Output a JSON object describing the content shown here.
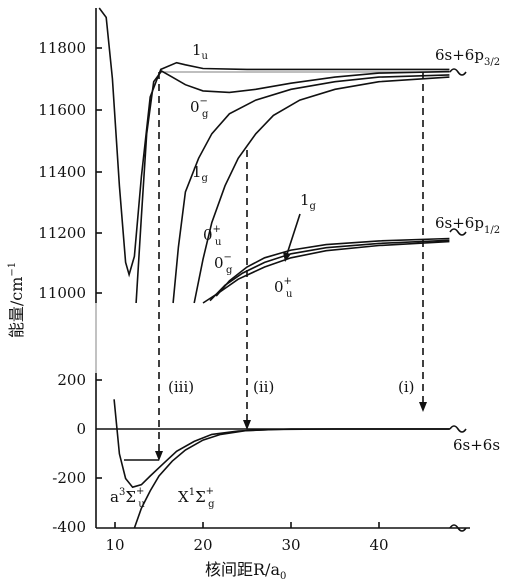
{
  "chart_data": {
    "type": "line",
    "ylabel": "能量/cm",
    "ylabel_sup": "−1",
    "xlabel": "核间距R/a",
    "xlabel_sub": "0",
    "panels": [
      {
        "id": "upper",
        "ylim": [
          10900,
          11960
        ],
        "yticks": [
          11000,
          11200,
          11400,
          11600,
          11800
        ],
        "asymptotes": [
          {
            "label": "6s+6p",
            "sub": "3/2",
            "y": 11730
          },
          {
            "label": "6s+6p",
            "sub": "1/2",
            "y": 11180
          }
        ],
        "curves": [
          {
            "label": "1",
            "sub": "u",
            "asymptote": 11730,
            "points": [
              [
                8.2,
                11970
              ],
              [
                9.0,
                11900
              ],
              [
                9.7,
                11700
              ],
              [
                10.5,
                11350
              ],
              [
                11.2,
                11100
              ],
              [
                11.6,
                11060
              ],
              [
                12.2,
                11120
              ],
              [
                13.0,
                11380
              ],
              [
                14.0,
                11640
              ],
              [
                15.2,
                11730
              ],
              [
                17.0,
                11752
              ],
              [
                18.0,
                11745
              ],
              [
                20.0,
                11733
              ],
              [
                25.0,
                11730
              ],
              [
                48.0,
                11730
              ]
            ]
          },
          {
            "label": "0",
            "sub": "g",
            "sup": "−",
            "asymptote": 11730,
            "points": [
              [
                12.4,
                10950
              ],
              [
                13.0,
                11250
              ],
              [
                13.6,
                11520
              ],
              [
                14.4,
                11690
              ],
              [
                15.3,
                11725
              ],
              [
                16.5,
                11705
              ],
              [
                18.0,
                11680
              ],
              [
                20.0,
                11660
              ],
              [
                23.0,
                11655
              ],
              [
                26.0,
                11665
              ],
              [
                30.0,
                11685
              ],
              [
                35.0,
                11705
              ],
              [
                40.0,
                11718
              ],
              [
                48.0,
                11723
              ]
            ]
          },
          {
            "label": "1",
            "sub": "g",
            "asymptote": 11730,
            "points": [
              [
                16.6,
                10950
              ],
              [
                17.2,
                11150
              ],
              [
                18.0,
                11330
              ],
              [
                19.5,
                11440
              ],
              [
                21.0,
                11520
              ],
              [
                23.0,
                11585
              ],
              [
                26.0,
                11630
              ],
              [
                30.0,
                11665
              ],
              [
                35.0,
                11690
              ],
              [
                40.0,
                11705
              ],
              [
                48.0,
                11712
              ]
            ]
          },
          {
            "label": "0",
            "sub": "u",
            "sup": "+",
            "asymptote": 11730,
            "points": [
              [
                19.0,
                10950
              ],
              [
                20.0,
                11110
              ],
              [
                21.0,
                11230
              ],
              [
                22.5,
                11350
              ],
              [
                24.0,
                11440
              ],
              [
                26.0,
                11520
              ],
              [
                28.0,
                11580
              ],
              [
                31.0,
                11630
              ],
              [
                35.0,
                11665
              ],
              [
                40.0,
                11690
              ],
              [
                48.0,
                11705
              ]
            ]
          },
          {
            "label": "1",
            "sub": "g",
            "asymptote": 11180,
            "points": [
              [
                21.5,
                10990
              ],
              [
                23.0,
                11040
              ],
              [
                25.0,
                11085
              ],
              [
                27.0,
                11115
              ],
              [
                30.0,
                11140
              ],
              [
                34.0,
                11158
              ],
              [
                40.0,
                11170
              ],
              [
                48.0,
                11178
              ]
            ]
          },
          {
            "label": "0",
            "sub": "g",
            "sup": "−",
            "asymptote": 11180,
            "points": [
              [
                20.8,
                10975
              ],
              [
                22.5,
                11025
              ],
              [
                24.5,
                11065
              ],
              [
                27.0,
                11100
              ],
              [
                30.0,
                11128
              ],
              [
                34.0,
                11148
              ],
              [
                40.0,
                11162
              ],
              [
                48.0,
                11172
              ]
            ]
          },
          {
            "label": "0",
            "sub": "u",
            "sup": "+",
            "asymptote": 11180,
            "points": [
              [
                20.0,
                10955
              ],
              [
                22.0,
                11005
              ],
              [
                24.0,
                11045
              ],
              [
                27.0,
                11085
              ],
              [
                30.0,
                11115
              ],
              [
                34.0,
                11138
              ],
              [
                40.0,
                11155
              ],
              [
                48.0,
                11168
              ]
            ]
          }
        ]
      },
      {
        "id": "lower",
        "ylim": [
          -400,
          230
        ],
        "yticks": [
          -400,
          -200,
          0,
          200
        ],
        "xlim": [
          7.5,
          52
        ],
        "xticks": [
          10,
          20,
          30,
          40
        ],
        "asymptotes": [
          {
            "label": "6s+6s",
            "y": 0
          }
        ],
        "curves": [
          {
            "label": "a",
            "sup": "3",
            "greek": "Σ",
            "sub": "u",
            "sup2": "+",
            "points": [
              [
                9.9,
                120
              ],
              [
                10.5,
                -100
              ],
              [
                11.2,
                -200
              ],
              [
                12.0,
                -235
              ],
              [
                13.0,
                -225
              ],
              [
                14.0,
                -190
              ],
              [
                15.5,
                -140
              ],
              [
                17.0,
                -90
              ],
              [
                19.0,
                -50
              ],
              [
                21.0,
                -22
              ],
              [
                24.0,
                -8
              ],
              [
                28.0,
                -2
              ],
              [
                35.0,
                0
              ],
              [
                48.0,
                0
              ]
            ]
          },
          {
            "label": "X",
            "sup": "1",
            "greek": "Σ",
            "sub": "g",
            "sup2": "+",
            "points": [
              [
                12.2,
                -400
              ],
              [
                13.0,
                -320
              ],
              [
                14.0,
                -250
              ],
              [
                15.0,
                -190
              ],
              [
                16.5,
                -130
              ],
              [
                18.0,
                -85
              ],
              [
                20.0,
                -45
              ],
              [
                22.0,
                -22
              ],
              [
                25.0,
                -6
              ],
              [
                30.0,
                0
              ],
              [
                48.0,
                0
              ]
            ]
          }
        ]
      }
    ],
    "transitions": [
      {
        "label": "(i)",
        "R": 45
      },
      {
        "label": "(ii)",
        "R": 25
      },
      {
        "label": "(iii)",
        "R": 15.5
      }
    ],
    "annotations": [
      {
        "label": "1",
        "sub": "g",
        "points_to_R": 25
      }
    ]
  }
}
